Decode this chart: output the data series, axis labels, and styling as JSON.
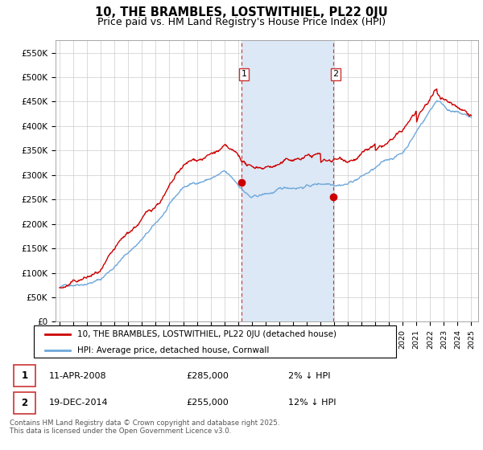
{
  "title_line1": "10, THE BRAMBLES, LOSTWITHIEL, PL22 0JU",
  "title_line2": "Price paid vs. HM Land Registry's House Price Index (HPI)",
  "ylim": [
    0,
    575000
  ],
  "yticks": [
    0,
    50000,
    100000,
    150000,
    200000,
    250000,
    300000,
    350000,
    400000,
    450000,
    500000,
    550000
  ],
  "ytick_labels": [
    "£0",
    "£50K",
    "£100K",
    "£150K",
    "£200K",
    "£250K",
    "£300K",
    "£350K",
    "£400K",
    "£450K",
    "£500K",
    "£550K"
  ],
  "sale1_year": 2008.27,
  "sale1_price": 285000,
  "sale2_year": 2014.96,
  "sale2_price": 255000,
  "hpi_color": "#6fa8dc",
  "sale_color": "#cc0000",
  "shade_color": "#dce8f5",
  "legend_line1": "10, THE BRAMBLES, LOSTWITHIEL, PL22 0JU (detached house)",
  "legend_line2": "HPI: Average price, detached house, Cornwall",
  "table_row1_num": "1",
  "table_row1_date": "11-APR-2008",
  "table_row1_price": "£285,000",
  "table_row1_hpi": "2% ↓ HPI",
  "table_row2_num": "2",
  "table_row2_date": "19-DEC-2014",
  "table_row2_price": "£255,000",
  "table_row2_hpi": "12% ↓ HPI",
  "footnote": "Contains HM Land Registry data © Crown copyright and database right 2025.\nThis data is licensed under the Open Government Licence v3.0.",
  "bg_color": "#ffffff",
  "grid_color": "#cccccc",
  "xstart": 1995,
  "xend": 2025
}
